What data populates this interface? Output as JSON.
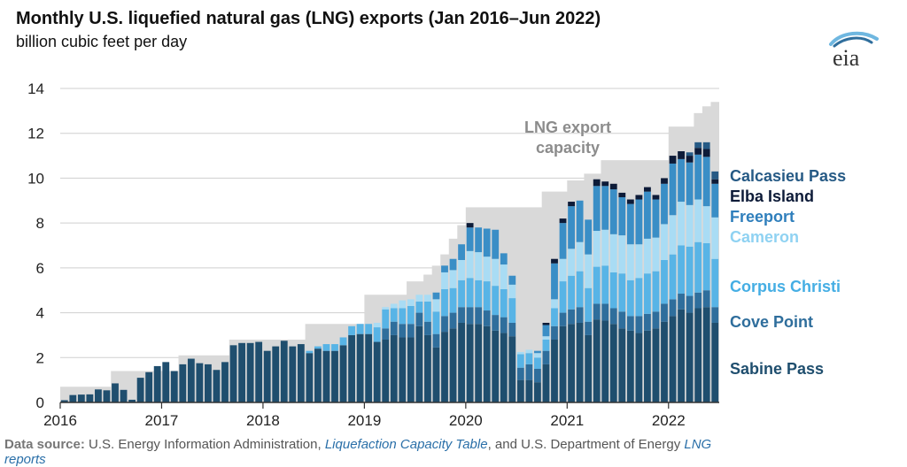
{
  "title": "Monthly U.S. liquefied natural gas (LNG) exports (Jan 2016–Jun 2022)",
  "subtitle": "billion cubic feet per day",
  "logo_text": "eia",
  "source": {
    "label": "Data source:",
    "text1": " U.S. Energy Information Administration, ",
    "link1": "Liquefaction Capacity Table",
    "text2": ", and U.S. Department of Energy ",
    "link2": "LNG",
    "link2_cont": "reports"
  },
  "colors": {
    "capacity": "#d9d9d9",
    "Sabine Pass": "#1f4e6e",
    "Cove Point": "#2f6e9c",
    "Corpus Christi": "#58b4e6",
    "Cameron": "#a9dcf4",
    "Freeport": "#3a8ec6",
    "Elba Island": "#0d1b38",
    "Calcasieu Pass": "#265a85",
    "legend_text": {
      "Calcasieu Pass": "#265a85",
      "Elba Island": "#0d1b38",
      "Freeport": "#2f7fbc",
      "Cameron": "#8fd2f2",
      "Corpus Christi": "#45aee4",
      "Cove Point": "#2f6e9c",
      "Sabine Pass": "#1f4e6e"
    }
  },
  "chart_data": {
    "type": "bar",
    "stacked": true,
    "title": "Monthly U.S. liquefied natural gas (LNG) exports (Jan 2016–Jun 2022)",
    "ylabel": "billion cubic feet per day",
    "ylim": [
      0,
      14
    ],
    "yticks": [
      "0",
      "2",
      "4",
      "6",
      "8",
      "10",
      "12",
      "14"
    ],
    "xticks": [
      "2016",
      "2017",
      "2018",
      "2019",
      "2020",
      "2021",
      "2022"
    ],
    "grid": true,
    "capacity_label": "LNG export capacity",
    "legend_order": [
      "Calcasieu Pass",
      "Elba Island",
      "Freeport",
      "Cameron",
      "Corpus Christi",
      "Cove Point",
      "Sabine Pass"
    ],
    "months": [
      "2016-01",
      "2016-02",
      "2016-03",
      "2016-04",
      "2016-05",
      "2016-06",
      "2016-07",
      "2016-08",
      "2016-09",
      "2016-10",
      "2016-11",
      "2016-12",
      "2017-01",
      "2017-02",
      "2017-03",
      "2017-04",
      "2017-05",
      "2017-06",
      "2017-07",
      "2017-08",
      "2017-09",
      "2017-10",
      "2017-11",
      "2017-12",
      "2018-01",
      "2018-02",
      "2018-03",
      "2018-04",
      "2018-05",
      "2018-06",
      "2018-07",
      "2018-08",
      "2018-09",
      "2018-10",
      "2018-11",
      "2018-12",
      "2019-01",
      "2019-02",
      "2019-03",
      "2019-04",
      "2019-05",
      "2019-06",
      "2019-07",
      "2019-08",
      "2019-09",
      "2019-10",
      "2019-11",
      "2019-12",
      "2020-01",
      "2020-02",
      "2020-03",
      "2020-04",
      "2020-05",
      "2020-06",
      "2020-07",
      "2020-08",
      "2020-09",
      "2020-10",
      "2020-11",
      "2020-12",
      "2021-01",
      "2021-02",
      "2021-03",
      "2021-04",
      "2021-05",
      "2021-06",
      "2021-07",
      "2021-08",
      "2021-09",
      "2021-10",
      "2021-11",
      "2021-12",
      "2022-01",
      "2022-02",
      "2022-03",
      "2022-04",
      "2022-05",
      "2022-06"
    ],
    "capacity": [
      0.7,
      0.7,
      0.7,
      0.7,
      0.7,
      0.7,
      1.4,
      1.4,
      1.4,
      1.4,
      1.4,
      1.4,
      1.4,
      1.4,
      2.1,
      2.1,
      2.1,
      2.1,
      2.1,
      2.1,
      2.8,
      2.8,
      2.8,
      2.8,
      2.8,
      2.8,
      2.8,
      2.8,
      2.8,
      3.5,
      3.5,
      3.5,
      3.5,
      3.5,
      3.5,
      3.5,
      4.8,
      4.8,
      4.8,
      4.8,
      4.8,
      5.4,
      5.4,
      5.7,
      6.1,
      6.6,
      7.3,
      7.9,
      8.7,
      8.7,
      8.7,
      8.7,
      8.7,
      8.7,
      8.7,
      8.7,
      8.7,
      9.4,
      9.4,
      9.4,
      9.9,
      9.9,
      10.2,
      10.2,
      10.8,
      10.8,
      10.8,
      10.8,
      10.8,
      10.8,
      10.8,
      10.8,
      12.3,
      12.3,
      12.3,
      12.9,
      13.2,
      13.4
    ],
    "series": [
      {
        "name": "Sabine Pass",
        "values": [
          0.1,
          0.33,
          0.35,
          0.36,
          0.58,
          0.54,
          0.85,
          0.56,
          0.12,
          1.1,
          1.35,
          1.62,
          1.8,
          1.4,
          1.7,
          1.95,
          1.75,
          1.7,
          1.45,
          1.8,
          2.55,
          2.65,
          2.65,
          2.7,
          2.3,
          2.5,
          2.75,
          2.5,
          2.6,
          2.2,
          2.4,
          2.3,
          2.3,
          2.55,
          3.0,
          3.05,
          3.05,
          2.7,
          2.8,
          3.0,
          2.9,
          2.9,
          3.4,
          3.0,
          2.45,
          3.15,
          3.3,
          3.55,
          3.5,
          3.5,
          3.4,
          3.2,
          3.1,
          2.95,
          1.0,
          1.0,
          0.9,
          1.7,
          2.8,
          3.4,
          3.5,
          3.55,
          3.0,
          3.7,
          3.65,
          3.5,
          3.3,
          3.2,
          3.1,
          3.2,
          3.3,
          3.6,
          3.85,
          4.15,
          4.0,
          4.2,
          4.25,
          3.55
        ]
      },
      {
        "name": "Cove Point",
        "values": [
          0,
          0,
          0,
          0,
          0,
          0,
          0,
          0,
          0,
          0,
          0,
          0,
          0,
          0,
          0,
          0,
          0,
          0,
          0,
          0,
          0,
          0,
          0,
          0,
          0,
          0,
          0,
          0,
          0,
          0,
          0,
          0,
          0,
          0,
          0,
          0,
          0,
          0,
          0.5,
          0.6,
          0.6,
          0.6,
          0.6,
          0.6,
          0.6,
          0.7,
          0.7,
          0.7,
          0.75,
          0.75,
          0.7,
          0.7,
          0.7,
          0.6,
          0.55,
          0.7,
          0.6,
          0.6,
          0.6,
          0.6,
          0.65,
          0.7,
          0.6,
          0.7,
          0.75,
          0.7,
          0.75,
          0.65,
          0.75,
          0.75,
          0.75,
          0.8,
          0.75,
          0.7,
          0.75,
          0.7,
          0.75,
          0.7
        ]
      },
      {
        "name": "Corpus Christi",
        "values": [
          0,
          0,
          0,
          0,
          0,
          0,
          0,
          0,
          0,
          0,
          0,
          0,
          0,
          0,
          0,
          0,
          0,
          0,
          0,
          0,
          0,
          0,
          0,
          0,
          0,
          0,
          0,
          0,
          0,
          0.1,
          0.1,
          0.3,
          0.3,
          0.35,
          0.4,
          0.45,
          0.45,
          0.65,
          0.85,
          0.6,
          0.7,
          0.8,
          0.5,
          0.9,
          1.0,
          1.2,
          1.1,
          1.2,
          1.3,
          1.2,
          1.3,
          1.3,
          1.25,
          1.1,
          0.6,
          0.5,
          0.5,
          0.5,
          0.8,
          1.4,
          1.5,
          1.6,
          1.5,
          1.65,
          1.7,
          1.6,
          1.7,
          1.6,
          1.7,
          1.8,
          1.8,
          1.95,
          2.0,
          2.15,
          2.2,
          2.25,
          2.1,
          2.15
        ]
      },
      {
        "name": "Cameron",
        "values": [
          0,
          0,
          0,
          0,
          0,
          0,
          0,
          0,
          0,
          0,
          0,
          0,
          0,
          0,
          0,
          0,
          0,
          0,
          0,
          0,
          0,
          0,
          0,
          0,
          0,
          0,
          0,
          0,
          0,
          0,
          0,
          0,
          0,
          0,
          0,
          0,
          0,
          0.2,
          0.1,
          0.2,
          0.35,
          0.3,
          0.3,
          0.3,
          0.55,
          0.75,
          0.8,
          0.9,
          1.2,
          1.25,
          1.1,
          1.2,
          1.1,
          0.6,
          0.1,
          0.15,
          0.2,
          0.15,
          0.4,
          1.0,
          1.2,
          1.3,
          1.5,
          1.6,
          1.6,
          1.7,
          1.7,
          1.6,
          1.5,
          1.55,
          1.5,
          1.6,
          1.75,
          1.95,
          1.85,
          1.9,
          1.65,
          1.85
        ]
      },
      {
        "name": "Freeport",
        "values": [
          0,
          0,
          0,
          0,
          0,
          0,
          0,
          0,
          0,
          0,
          0,
          0,
          0,
          0,
          0,
          0,
          0,
          0,
          0,
          0,
          0,
          0,
          0,
          0,
          0,
          0,
          0,
          0,
          0,
          0,
          0,
          0,
          0,
          0,
          0,
          0,
          0,
          0,
          0,
          0,
          0,
          0,
          0,
          0,
          0.3,
          0.3,
          0.5,
          0.7,
          1.05,
          1.1,
          1.25,
          1.3,
          0.5,
          0.4,
          0.0,
          0.0,
          0.1,
          0.5,
          1.6,
          1.6,
          1.9,
          1.85,
          1.55,
          2.0,
          1.95,
          2.0,
          1.7,
          1.8,
          2.0,
          2.1,
          1.7,
          1.8,
          2.3,
          1.9,
          1.9,
          2.0,
          2.2,
          1.5
        ]
      },
      {
        "name": "Elba Island",
        "values": [
          0,
          0,
          0,
          0,
          0,
          0,
          0,
          0,
          0,
          0,
          0,
          0,
          0,
          0,
          0,
          0,
          0,
          0,
          0,
          0,
          0,
          0,
          0,
          0,
          0,
          0,
          0,
          0,
          0,
          0,
          0,
          0,
          0,
          0,
          0,
          0,
          0,
          0,
          0,
          0,
          0,
          0,
          0,
          0,
          0,
          0,
          0,
          0,
          0.2,
          0,
          0,
          0,
          0,
          0,
          0,
          0,
          0,
          0.1,
          0.2,
          0.2,
          0.2,
          0,
          0,
          0.3,
          0.2,
          0.25,
          0.2,
          0.2,
          0.2,
          0.2,
          0.2,
          0.25,
          0.35,
          0.35,
          0.3,
          0.3,
          0.35,
          0.2
        ]
      },
      {
        "name": "Calcasieu Pass",
        "values": [
          0,
          0,
          0,
          0,
          0,
          0,
          0,
          0,
          0,
          0,
          0,
          0,
          0,
          0,
          0,
          0,
          0,
          0,
          0,
          0,
          0,
          0,
          0,
          0,
          0,
          0,
          0,
          0,
          0,
          0,
          0,
          0,
          0,
          0,
          0,
          0,
          0,
          0,
          0,
          0,
          0,
          0,
          0,
          0,
          0,
          0,
          0,
          0,
          0,
          0,
          0,
          0,
          0,
          0,
          0,
          0,
          0,
          0,
          0,
          0,
          0,
          0,
          0,
          0,
          0,
          0,
          0,
          0,
          0,
          0,
          0,
          0,
          0,
          0,
          0.15,
          0.25,
          0.3,
          0.35
        ]
      }
    ]
  }
}
